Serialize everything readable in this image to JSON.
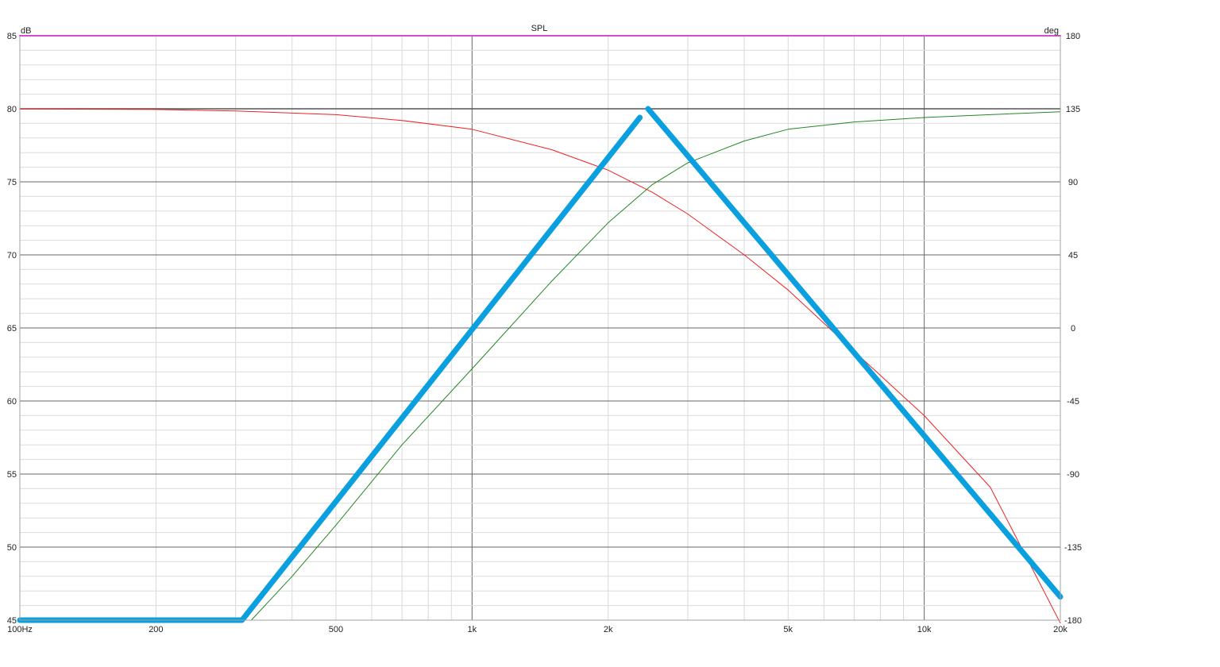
{
  "chart_data": {
    "type": "line",
    "title": "SPL",
    "y_unit_left": "dB",
    "y_unit_right": "deg",
    "x_scale": "log",
    "xlim": [
      100,
      20000
    ],
    "ylim_left": [
      45,
      85
    ],
    "ylim_right": [
      -180,
      180
    ],
    "grid": true,
    "x_ticks": [
      {
        "value": 100,
        "label": "100Hz"
      },
      {
        "value": 200,
        "label": "200"
      },
      {
        "value": 500,
        "label": "500"
      },
      {
        "value": 1000,
        "label": "1k"
      },
      {
        "value": 2000,
        "label": "2k"
      },
      {
        "value": 5000,
        "label": "5k"
      },
      {
        "value": 10000,
        "label": "10k"
      },
      {
        "value": 20000,
        "label": "20k"
      }
    ],
    "y_ticks_left": [
      {
        "value": 45,
        "label": "45"
      },
      {
        "value": 50,
        "label": "50"
      },
      {
        "value": 55,
        "label": "55"
      },
      {
        "value": 60,
        "label": "60"
      },
      {
        "value": 65,
        "label": "65"
      },
      {
        "value": 70,
        "label": "70"
      },
      {
        "value": 75,
        "label": "75"
      },
      {
        "value": 80,
        "label": "80"
      },
      {
        "value": 85,
        "label": "85"
      }
    ],
    "y_ticks_right": [
      {
        "value": 180,
        "label": "180"
      },
      {
        "value": 135,
        "label": "135"
      },
      {
        "value": 90,
        "label": "90"
      },
      {
        "value": 45,
        "label": "45"
      },
      {
        "value": 0,
        "label": "0"
      },
      {
        "value": -45,
        "label": "-45"
      },
      {
        "value": -90,
        "label": "-90"
      },
      {
        "value": -135,
        "label": "-135"
      },
      {
        "value": -180,
        "label": "-180"
      }
    ],
    "series": [
      {
        "color": "#ff00ff",
        "axis": "left",
        "width": 2,
        "x": [
          100,
          20000
        ],
        "y": [
          85,
          85
        ]
      },
      {
        "color": "#555555",
        "axis": "left",
        "width": 1.5,
        "x": [
          100,
          20000
        ],
        "y": [
          80,
          80
        ]
      },
      {
        "color": "#ee2222",
        "axis": "left",
        "width": 1,
        "x": [
          100,
          200,
          300,
          500,
          700,
          1000,
          1500,
          2000,
          2500,
          3000,
          4000,
          5000,
          7000,
          10000,
          14000,
          20000
        ],
        "y": [
          79.99,
          79.95,
          79.85,
          79.6,
          79.2,
          78.6,
          77.2,
          75.8,
          74.3,
          72.8,
          70.0,
          67.6,
          63.4,
          59.0,
          54.1,
          44.8
        ]
      },
      {
        "color": "#228822",
        "axis": "left",
        "width": 1,
        "x": [
          325,
          400,
          500,
          700,
          1000,
          1500,
          2000,
          2500,
          3000,
          4000,
          5000,
          7000,
          10000,
          14000,
          20000
        ],
        "y": [
          45,
          48.0,
          51.5,
          57.0,
          62.2,
          68.2,
          72.2,
          74.8,
          76.3,
          77.8,
          78.6,
          79.1,
          79.4,
          79.6,
          79.8
        ]
      },
      {
        "color": "#0aa0e0",
        "axis": "left",
        "width": 7,
        "x": [
          100,
          310,
          2350
        ],
        "y": [
          45,
          45,
          79.4
        ]
      },
      {
        "color": "#0aa0e0",
        "axis": "left",
        "width": 7,
        "x": [
          2450,
          20000
        ],
        "y": [
          80,
          46.6
        ]
      }
    ]
  }
}
